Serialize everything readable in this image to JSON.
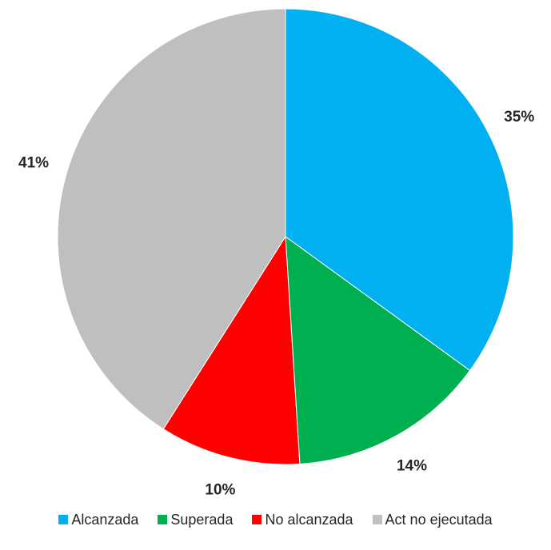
{
  "chart_data": {
    "type": "pie",
    "title": "",
    "categories": [
      "Alcanzada",
      "Superada",
      "No alcanzada",
      "Act no ejecutada"
    ],
    "values": [
      35,
      14,
      10,
      41
    ],
    "labels": [
      "35%",
      "14%",
      "10%",
      "41%"
    ],
    "colors": [
      "#00B0F0",
      "#00B050",
      "#FF0000",
      "#BFBFBF"
    ],
    "legend_position": "bottom"
  }
}
